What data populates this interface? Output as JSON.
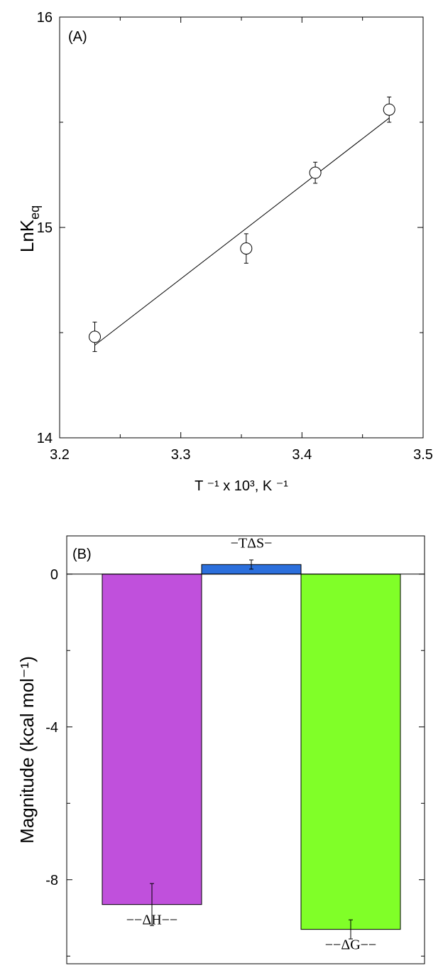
{
  "chart_data": [
    {
      "type": "scatter",
      "panel_label": "(A)",
      "xlabel": "T ⁻¹ x 10³, K ⁻¹",
      "ylabel_main": "LnK",
      "ylabel_sub": "eq",
      "xlim": [
        3.2,
        3.5
      ],
      "ylim": [
        14,
        16
      ],
      "xticks": [
        "3.2",
        "3.3",
        "3.4",
        "3.5"
      ],
      "yticks": [
        "14",
        "15",
        "16"
      ],
      "points": [
        {
          "x": 3.229,
          "y": 14.48,
          "err": 0.07
        },
        {
          "x": 3.354,
          "y": 14.9,
          "err": 0.07
        },
        {
          "x": 3.411,
          "y": 15.26,
          "err": 0.05
        },
        {
          "x": 3.472,
          "y": 15.56,
          "err": 0.06
        }
      ],
      "fit_line": {
        "x": [
          3.229,
          3.472
        ],
        "y": [
          14.44,
          15.52
        ]
      },
      "grid": false
    },
    {
      "type": "bar",
      "panel_label": "(B)",
      "ylabel": "Magnitude (kcal mol⁻¹)",
      "ylim": [
        -10.2,
        1.0
      ],
      "yticks": [
        "0",
        "-4",
        "-8"
      ],
      "categories": [
        "−−ΔH−−",
        "−TΔS−",
        "−−ΔG−−"
      ],
      "values": [
        -8.65,
        0.25,
        -9.3
      ],
      "errors": [
        0.55,
        0.12,
        0.25
      ],
      "colors": [
        "#c050dc",
        "#2b6fdc",
        "#80ff28"
      ],
      "grid": false
    }
  ]
}
